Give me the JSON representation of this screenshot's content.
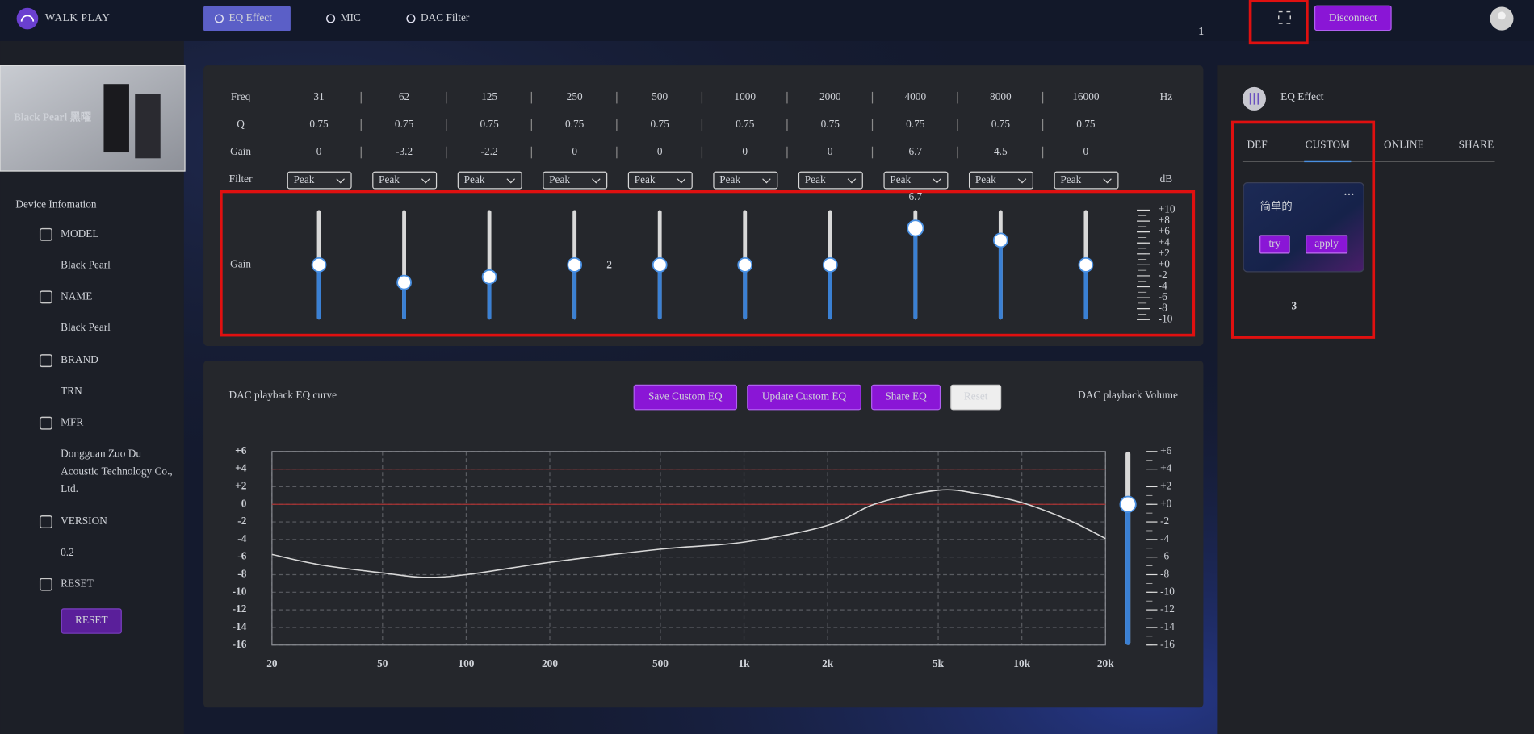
{
  "header": {
    "brand": "WALK PLAY",
    "nav": [
      "EQ Effect",
      "MIC",
      "DAC Filter"
    ],
    "active_nav": 0,
    "disconnect": "Disconnect"
  },
  "annotations": [
    "1",
    "2",
    "3"
  ],
  "sidebar": {
    "image_caption": "Black Pearl 黑曜",
    "title": "Device Infomation",
    "items": [
      {
        "label": "MODEL",
        "value": [
          "Black Pearl"
        ]
      },
      {
        "label": "NAME",
        "value": [
          "Black Pearl"
        ]
      },
      {
        "label": "BRAND",
        "value": [
          "TRN"
        ]
      },
      {
        "label": "MFR",
        "value": [
          "Dongguan Zuo Du",
          "Acoustic Technology Co.,",
          "Ltd."
        ]
      },
      {
        "label": "VERSION",
        "value": [
          "0.2"
        ]
      },
      {
        "label": "RESET",
        "button": "RESET"
      }
    ]
  },
  "eq_table": {
    "row_labels": [
      "Freq",
      "Q",
      "Gain",
      "Filter"
    ],
    "freq": [
      31,
      62,
      125,
      250,
      500,
      1000,
      2000,
      4000,
      8000,
      16000
    ],
    "q": [
      0.75,
      0.75,
      0.75,
      0.75,
      0.75,
      0.75,
      0.75,
      0.75,
      0.75,
      0.75
    ],
    "gain": [
      0,
      -3.2,
      -2.2,
      0,
      0,
      0,
      0,
      6.7,
      4.5,
      0
    ],
    "filter": [
      "Peak",
      "Peak",
      "Peak",
      "Peak",
      "Peak",
      "Peak",
      "Peak",
      "Peak",
      "Peak",
      "Peak"
    ],
    "freq_unit": "Hz",
    "gain_unit": "dB"
  },
  "gain_sliders": {
    "label": "Gain",
    "active": 7,
    "lim": [
      -10,
      10
    ],
    "ticks": [
      {
        "value": 10,
        "label": "+10"
      },
      {
        "value": 8,
        "label": "+8"
      },
      {
        "value": 6,
        "label": "+6"
      },
      {
        "value": 4,
        "label": "+4"
      },
      {
        "value": 2,
        "label": "+2"
      },
      {
        "value": 0,
        "label": "+0"
      },
      -2,
      -4,
      -6,
      -8,
      -10
    ]
  },
  "curve_panel": {
    "title": "DAC playback EQ curve",
    "buttons": [
      "Save Custom EQ",
      "Update Custom EQ",
      "Share EQ",
      "Reset"
    ],
    "volume_title": "DAC playback Volume"
  },
  "chart_data": {
    "type": "line",
    "x": [
      20,
      30,
      50,
      70,
      100,
      200,
      500,
      1000,
      2000,
      3000,
      5000,
      7000,
      10000,
      15000,
      20000
    ],
    "values": [
      -5.7,
      -6.9,
      -7.8,
      -8.3,
      -8.0,
      -6.6,
      -5.1,
      -4.3,
      -2.4,
      0.1,
      1.6,
      1.2,
      0.2,
      -1.9,
      -3.9
    ],
    "color": "#d8d8d8",
    "xlog": true,
    "xlim": [
      20,
      20000
    ],
    "xticks": [
      20,
      50,
      100,
      200,
      500,
      {
        "value": 1000,
        "label": "1k"
      },
      {
        "value": 2000,
        "label": "2k"
      },
      {
        "value": 5000,
        "label": "5k"
      },
      {
        "value": 10000,
        "label": "10k"
      },
      {
        "value": 20000,
        "label": "20k"
      }
    ],
    "ylim": [
      -16,
      6
    ],
    "yticks": [
      {
        "value": 6,
        "label": "+6"
      },
      {
        "value": 4,
        "label": "+4"
      },
      {
        "value": 2,
        "label": "+2"
      },
      0,
      -2,
      -4,
      -6,
      -8,
      -10,
      -12,
      -14,
      -16
    ],
    "grid": true,
    "reference_lines": [
      4,
      0
    ],
    "reference_color": "#a83232"
  },
  "volume": {
    "value": 0,
    "lim": [
      -16,
      6
    ],
    "ticks": [
      {
        "value": 6,
        "label": "+6"
      },
      {
        "value": 4,
        "label": "+4"
      },
      {
        "value": 2,
        "label": "+2"
      },
      {
        "value": 0,
        "label": "+0"
      },
      -2,
      -4,
      -6,
      -8,
      -10,
      -12,
      -14,
      -16
    ]
  },
  "right_panel": {
    "title": "EQ Effect",
    "tabs": [
      "DEF",
      "CUSTOM",
      "ONLINE",
      "SHARE"
    ],
    "active_tab": 1,
    "card": {
      "name": "简单的",
      "menu": "···",
      "buttons": [
        "try",
        "apply"
      ]
    }
  }
}
